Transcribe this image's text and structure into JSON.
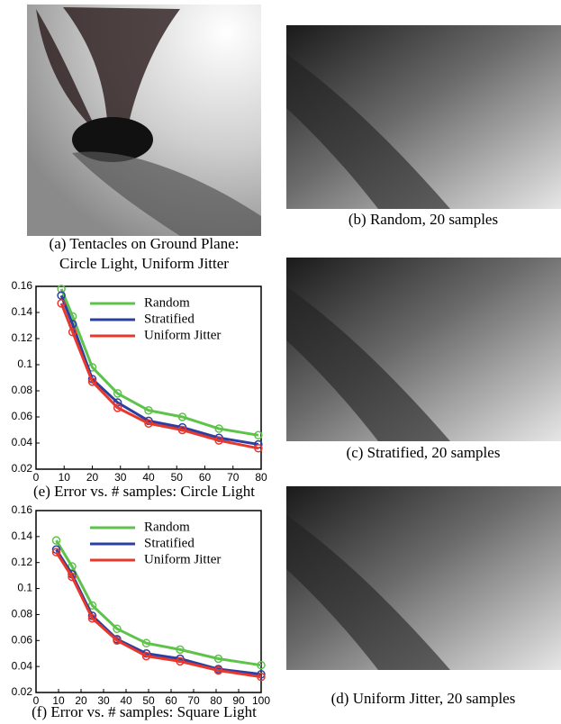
{
  "images": [
    {
      "caption": [
        "(a) Tentacles on Ground Plane:",
        "Circle Light, Uniform Jitter"
      ]
    },
    {
      "caption": [
        "(b) Random, 20 samples"
      ]
    },
    {
      "caption": [
        "(c) Stratified, 20 samples"
      ]
    },
    {
      "caption": [
        "(d) Uniform Jitter, 20 samples"
      ]
    }
  ],
  "chart_data": [
    {
      "type": "line",
      "title": "(e) Error vs. # samples: Circle Light",
      "x": [
        9,
        13,
        20,
        29,
        40,
        52,
        65,
        79
      ],
      "series": [
        {
          "name": "Random",
          "color": "#5ec24b",
          "values": [
            0.158,
            0.137,
            0.098,
            0.078,
            0.065,
            0.06,
            0.051,
            0.046
          ]
        },
        {
          "name": "Stratified",
          "color": "#2b3fa0",
          "values": [
            0.153,
            0.131,
            0.089,
            0.071,
            0.057,
            0.052,
            0.044,
            0.039
          ]
        },
        {
          "name": "Uniform Jitter",
          "color": "#e8372c",
          "values": [
            0.147,
            0.125,
            0.087,
            0.067,
            0.055,
            0.05,
            0.042,
            0.036
          ]
        }
      ],
      "xlim": [
        0,
        80
      ],
      "xticks": [
        0,
        10,
        20,
        30,
        40,
        50,
        60,
        70,
        80
      ],
      "ylim": [
        0.02,
        0.16
      ],
      "yticks": [
        0.02,
        0.04,
        0.06,
        0.08,
        0.1,
        0.12,
        0.14,
        0.16
      ],
      "legend": "upper-right"
    },
    {
      "type": "line",
      "title": "(f) Error vs. # samples: Square Light",
      "x": [
        9,
        16,
        25,
        36,
        49,
        64,
        81,
        100
      ],
      "series": [
        {
          "name": "Random",
          "color": "#5ec24b",
          "values": [
            0.137,
            0.117,
            0.087,
            0.069,
            0.058,
            0.053,
            0.046,
            0.041
          ]
        },
        {
          "name": "Stratified",
          "color": "#2b3fa0",
          "values": [
            0.13,
            0.111,
            0.079,
            0.061,
            0.05,
            0.046,
            0.038,
            0.034
          ]
        },
        {
          "name": "Uniform Jitter",
          "color": "#e8372c",
          "values": [
            0.128,
            0.109,
            0.077,
            0.06,
            0.048,
            0.044,
            0.037,
            0.032
          ]
        }
      ],
      "xlim": [
        0,
        100
      ],
      "xticks": [
        0,
        10,
        20,
        30,
        40,
        50,
        60,
        70,
        80,
        90,
        100
      ],
      "ylim": [
        0.02,
        0.16
      ],
      "yticks": [
        0.02,
        0.04,
        0.06,
        0.08,
        0.1,
        0.12,
        0.14,
        0.16
      ],
      "legend": "upper-right"
    }
  ]
}
